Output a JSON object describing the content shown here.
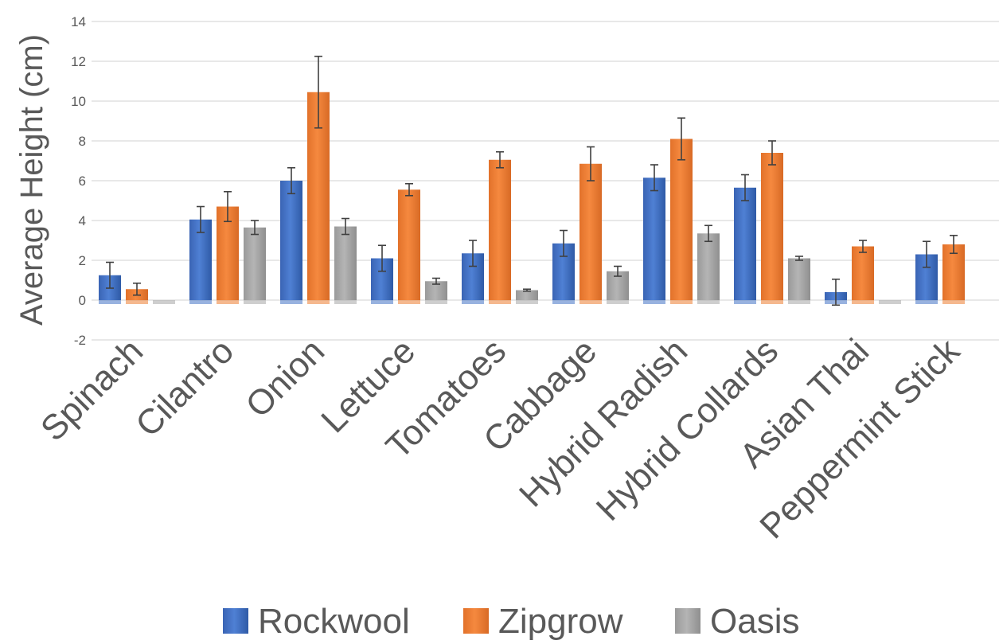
{
  "chart_data": {
    "type": "bar",
    "title": "",
    "xlabel": "",
    "ylabel": "Average Height (cm)",
    "ylim": [
      -2,
      14
    ],
    "yticks": [
      -2,
      0,
      2,
      4,
      6,
      8,
      10,
      12,
      14
    ],
    "grid": true,
    "legend_position": "bottom",
    "categories": [
      "Spinach",
      "Cilantro",
      "Onion",
      "Lettuce",
      "Tomatoes",
      "Cabbage",
      "Hybrid Radish",
      "Hybrid Collards",
      "Asian Thai",
      "Peppermint Stick"
    ],
    "series": [
      {
        "name": "Rockwool",
        "color": "#4472c4",
        "values": [
          1.25,
          4.05,
          6.0,
          2.1,
          2.35,
          2.85,
          6.15,
          5.65,
          0.4,
          2.3
        ],
        "errors": [
          0.65,
          0.65,
          0.65,
          0.65,
          0.65,
          0.65,
          0.65,
          0.65,
          0.65,
          0.65
        ]
      },
      {
        "name": "Zipgrow",
        "color": "#ed7d31",
        "values": [
          0.55,
          4.7,
          10.45,
          5.55,
          7.05,
          6.85,
          8.1,
          7.4,
          2.7,
          2.8
        ],
        "errors": [
          0.3,
          0.75,
          1.8,
          0.3,
          0.4,
          0.85,
          1.05,
          0.6,
          0.3,
          0.45
        ]
      },
      {
        "name": "Oasis",
        "color": "#a5a5a5",
        "values": [
          0,
          3.65,
          3.7,
          0.95,
          0.5,
          1.45,
          3.35,
          2.1,
          0,
          null
        ],
        "errors": [
          0,
          0.35,
          0.4,
          0.15,
          0.05,
          0.25,
          0.4,
          0.1,
          0,
          null
        ]
      }
    ]
  }
}
